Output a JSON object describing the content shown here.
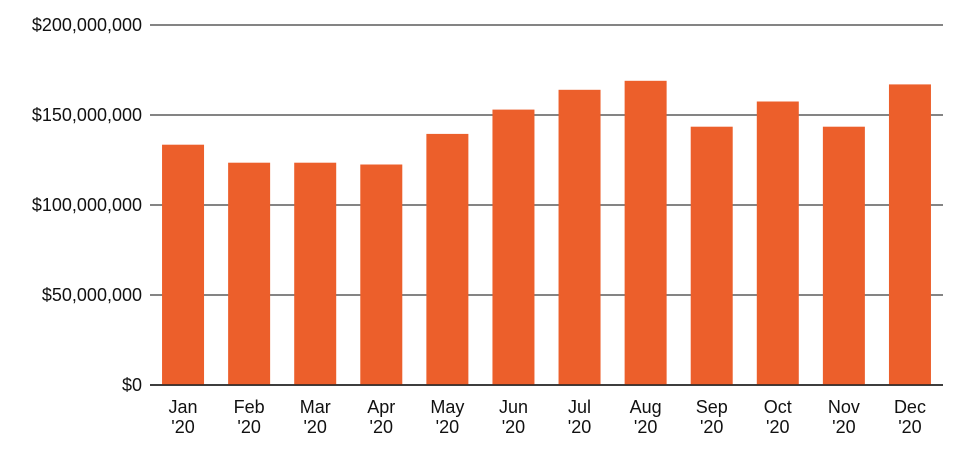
{
  "chart_data": {
    "type": "bar",
    "categories": [
      [
        "Jan",
        "'20"
      ],
      [
        "Feb",
        "'20"
      ],
      [
        "Mar",
        "'20"
      ],
      [
        "Apr",
        "'20"
      ],
      [
        "May",
        "'20"
      ],
      [
        "Jun",
        "'20"
      ],
      [
        "Jul",
        "'20"
      ],
      [
        "Aug",
        "'20"
      ],
      [
        "Sep",
        "'20"
      ],
      [
        "Oct",
        "'20"
      ],
      [
        "Nov",
        "'20"
      ],
      [
        "Dec",
        "'20"
      ]
    ],
    "values": [
      133500000,
      123500000,
      123500000,
      122500000,
      139500000,
      153000000,
      164000000,
      169000000,
      143500000,
      157500000,
      143500000,
      167000000
    ],
    "ylim": [
      0,
      200000000
    ],
    "yticks": [
      0,
      50000000,
      100000000,
      150000000,
      200000000
    ],
    "ytick_labels": [
      "$0",
      "$50,000,000",
      "$100,000,000",
      "$150,000,000",
      "$200,000,000"
    ],
    "grid": true,
    "bar_color": "#EC5F2B",
    "title": "",
    "xlabel": "",
    "ylabel": ""
  }
}
